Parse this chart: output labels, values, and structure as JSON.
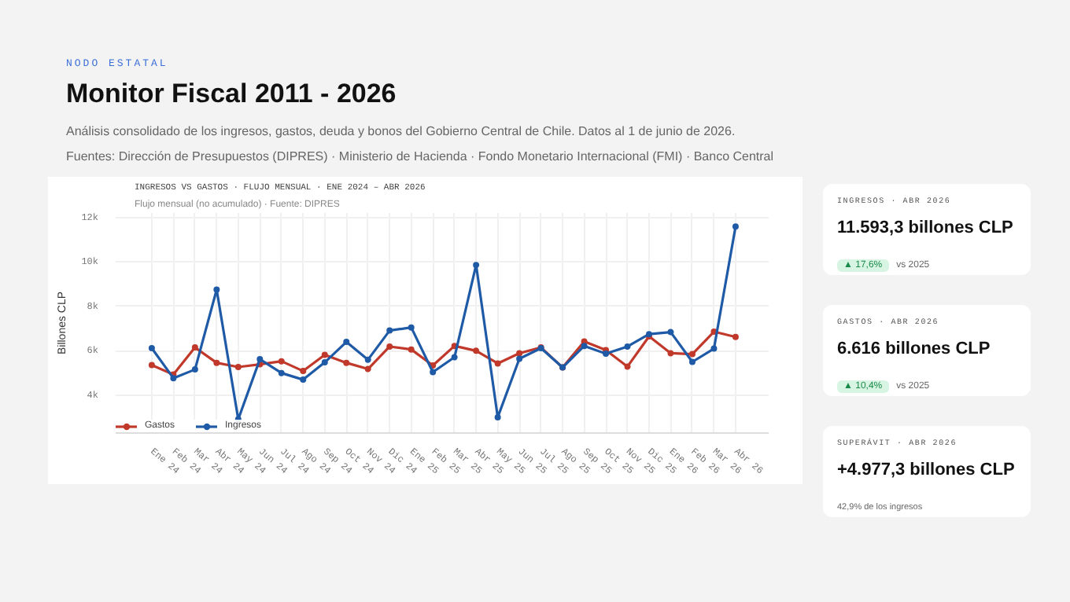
{
  "chart_data": [
    {
      "type": "other",
      "title": "Monitor Fiscal 2011 - 2026",
      "subtitle": "Análisis consolidado de los ingresos, gastos, deuda y bonos del Gobierno Central de Chile. Datos al 1 de junio de 2026.",
      "annotations": [
        "NODO ESTATAL",
        "Fuentes: Dirección de Presupuestos (DIPRES) · Ministerio de Hacienda · Fondo Monetario Internacional (FMI) · Banco Central"
      ]
    },
    {
      "type": "line",
      "title": "INGRESOS VS GASTOS · FLUJO MENSUAL · ENE 2024 – ABR 2026",
      "subtitle": "Flujo mensual (no acumulado) · Fuente: DIPRES",
      "ylabel": "Billones CLP",
      "categories": [
        "Ene 24",
        "Feb 24",
        "Mar 24",
        "Abr 24",
        "May 24",
        "Jun 24",
        "Jul 24",
        "Ago 24",
        "Sep 24",
        "Oct 24",
        "Nov 24",
        "Dic 24",
        "Ene 25",
        "Feb 25",
        "Mar 25",
        "Abr 25",
        "May 25",
        "Jun 25",
        "Jul 25",
        "Ago 25",
        "Sep 25",
        "Oct 25",
        "Nov 25",
        "Dic 25",
        "Ene 26",
        "Feb 26",
        "Mar 26",
        "Abr 26"
      ],
      "series": [
        {
          "name": "Gastos",
          "color": "#c0392b",
          "values": [
            5360,
            4930,
            6150,
            5460,
            5270,
            5390,
            5530,
            5090,
            5820,
            5460,
            5180,
            6190,
            6060,
            5340,
            6220,
            6000,
            5430,
            5890,
            6150,
            5250,
            6420,
            6030,
            5290,
            6650,
            5890,
            5850,
            6860,
            6620
          ]
        },
        {
          "name": "Ingresos",
          "color": "#1f5aa6",
          "values": [
            6120,
            4770,
            5160,
            8750,
            2920,
            5620,
            5000,
            4700,
            5480,
            6400,
            5600,
            6910,
            7050,
            5040,
            5710,
            9860,
            3010,
            5640,
            6120,
            5250,
            6220,
            5870,
            6190,
            6750,
            6840,
            5500,
            6100,
            11590
          ]
        }
      ],
      "ylim": [
        2300,
        12200
      ],
      "yticks": [
        {
          "value": 4000,
          "label": "4k"
        },
        {
          "value": 6000,
          "label": "6k"
        },
        {
          "value": 8000,
          "label": "8k"
        },
        {
          "value": 10000,
          "label": "10k"
        },
        {
          "value": 12000,
          "label": "12k"
        }
      ],
      "grid": true,
      "legend": "bottom left",
      "marker": "circle",
      "line_style": "solid"
    },
    {
      "type": "other",
      "title": "INGRESOS · ABR 2026",
      "subtitle": "11.593,3 billones CLP",
      "annotations": [
        "▲ 17,6%",
        "vs 2025"
      ]
    },
    {
      "type": "other",
      "title": "GASTOS · ABR 2026",
      "subtitle": "6.616 billones CLP",
      "annotations": [
        "▲ 10,4%",
        "vs 2025"
      ]
    },
    {
      "type": "other",
      "title": "SUPERÁVIT · ABR 2026",
      "subtitle": "+4.977,3 billones CLP",
      "annotations": [
        "42,9% de los ingresos"
      ]
    }
  ]
}
